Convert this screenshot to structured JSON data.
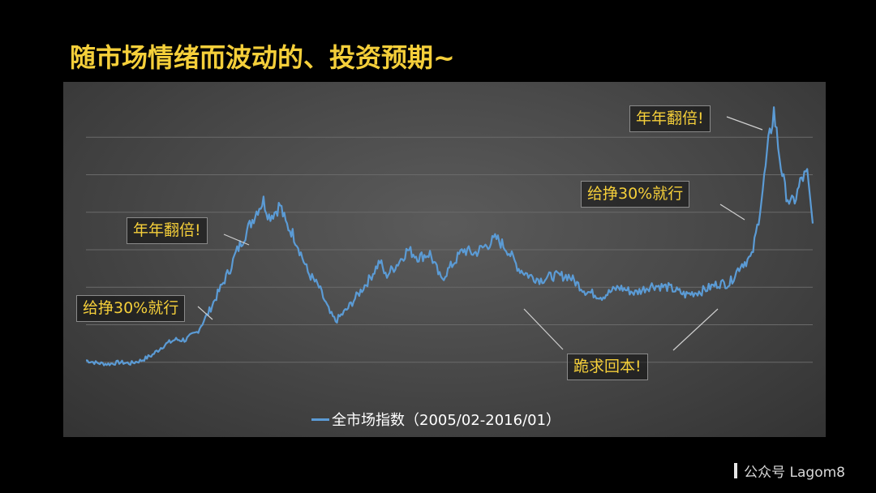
{
  "slide": {
    "title": "随市场情绪而波动的、投资预期~"
  },
  "watermark": {
    "text": "公众号 Lagom8"
  },
  "colors": {
    "title": "#f5cf3a",
    "line": "#5b9bd5",
    "background": "#000000",
    "panel": "#4a4a4a"
  },
  "chart_data": {
    "type": "line",
    "title": "",
    "xlabel": "",
    "ylabel": "",
    "grid": true,
    "legend_position": "bottom-center",
    "series": [
      {
        "name": "全市场指数（2005/02-2016/01）",
        "color": "#5b9bd5",
        "x": [
          "2005-02",
          "2005-04",
          "2005-06",
          "2005-08",
          "2005-10",
          "2005-12",
          "2006-02",
          "2006-04",
          "2006-06",
          "2006-08",
          "2006-10",
          "2006-12",
          "2007-02",
          "2007-04",
          "2007-05",
          "2007-06",
          "2007-07",
          "2007-08",
          "2007-09",
          "2007-10",
          "2007-11",
          "2007-12",
          "2008-01",
          "2008-02",
          "2008-03",
          "2008-04",
          "2008-06",
          "2008-08",
          "2008-10",
          "2008-11",
          "2009-01",
          "2009-03",
          "2009-05",
          "2009-07",
          "2009-08",
          "2009-10",
          "2009-12",
          "2010-02",
          "2010-04",
          "2010-06",
          "2010-08",
          "2010-10",
          "2010-12",
          "2011-02",
          "2011-04",
          "2011-06",
          "2011-08",
          "2011-10",
          "2011-12",
          "2012-02",
          "2012-05",
          "2012-08",
          "2012-11",
          "2013-02",
          "2013-05",
          "2013-08",
          "2013-11",
          "2014-02",
          "2014-05",
          "2014-08",
          "2014-10",
          "2014-12",
          "2015-02",
          "2015-03",
          "2015-04",
          "2015-05",
          "2015-06",
          "2015-07",
          "2015-08",
          "2015-09",
          "2015-10",
          "2015-11",
          "2015-12",
          "2016-01"
        ],
        "values": [
          1.05,
          0.98,
          0.95,
          1.0,
          0.97,
          1.05,
          1.2,
          1.45,
          1.6,
          1.6,
          1.8,
          2.3,
          2.9,
          3.5,
          3.9,
          4.2,
          4.5,
          4.8,
          5.1,
          5.3,
          4.9,
          5.0,
          5.2,
          4.7,
          4.5,
          4.2,
          3.4,
          3.0,
          2.3,
          2.1,
          2.4,
          2.8,
          3.2,
          3.7,
          3.3,
          3.6,
          4.0,
          3.8,
          3.9,
          3.2,
          3.6,
          4.0,
          3.9,
          4.1,
          4.3,
          4.0,
          3.5,
          3.3,
          3.2,
          3.3,
          3.3,
          2.9,
          2.75,
          3.0,
          2.85,
          3.05,
          3.0,
          2.8,
          2.9,
          3.1,
          3.1,
          3.6,
          3.8,
          4.6,
          5.6,
          6.8,
          7.7,
          6.5,
          5.6,
          5.2,
          5.4,
          5.9,
          6.0,
          4.7
        ]
      }
    ],
    "ylim": [
      0,
      8
    ],
    "annotations": [
      {
        "text": "给挣30%就行",
        "at": "2006-12"
      },
      {
        "text": "年年翻倍!",
        "at": "2007-10"
      },
      {
        "text": "跪求回本!",
        "at": "2012-2014"
      },
      {
        "text": "给挣30%就行",
        "at": "2015-04"
      },
      {
        "text": "年年翻倍!",
        "at": "2015-06"
      }
    ]
  }
}
